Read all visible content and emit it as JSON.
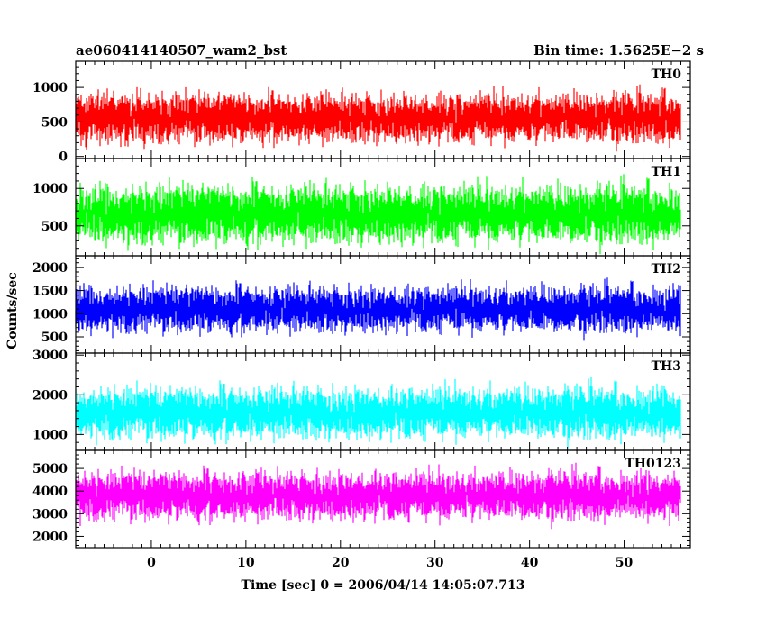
{
  "chart_data": {
    "type": "line",
    "title_left": "ae060414140507_wam2_bst",
    "title_right": "Bin time: 1.5625E−2 s",
    "xlabel": "Time [sec] 0 = 2006/04/14 14:05:07.713",
    "ylabel": "Counts/sec",
    "xlim": [
      -8,
      57
    ],
    "x_data_range": [
      -8,
      56
    ],
    "bin_time": 0.015625,
    "x_ticks": [
      0,
      10,
      20,
      30,
      40,
      50
    ],
    "x_tick_labels": [
      "0",
      "10",
      "20",
      "30",
      "40",
      "50"
    ],
    "grid": false,
    "panels": [
      {
        "name": "TH0",
        "color": "#ff0000",
        "ylim": [
          -30,
          1380
        ],
        "y_ticks": [
          0,
          500,
          1000
        ],
        "y_tick_labels": [
          "0",
          "500",
          "1000"
        ],
        "y_minor_step": 100,
        "mean": 560,
        "spread": 300,
        "low": 0,
        "high": 1380
      },
      {
        "name": "TH1",
        "color": "#00ff00",
        "ylim": [
          100,
          1400
        ],
        "y_ticks": [
          500,
          1000
        ],
        "y_tick_labels": [
          "500",
          "1000"
        ],
        "y_minor_step": 100,
        "mean": 660,
        "spread": 330,
        "low": 110,
        "high": 1400
      },
      {
        "name": "TH2",
        "color": "#0000ff",
        "ylim": [
          150,
          2250
        ],
        "y_ticks": [
          500,
          1000,
          1500,
          2000
        ],
        "y_tick_labels": [
          "500",
          "1000",
          "1500",
          "2000"
        ],
        "y_minor_step": 100,
        "mean": 1100,
        "spread": 420,
        "low": 200,
        "high": 2250
      },
      {
        "name": "TH3",
        "color": "#00ffff",
        "ylim": [
          600,
          3050
        ],
        "y_ticks": [
          1000,
          2000,
          3000
        ],
        "y_tick_labels": [
          "1000",
          "2000",
          "3000"
        ],
        "y_minor_step": 200,
        "mean": 1550,
        "spread": 550,
        "low": 650,
        "high": 3050
      },
      {
        "name": "TH0123",
        "color": "#ff00ff",
        "ylim": [
          1500,
          5800
        ],
        "y_ticks": [
          2000,
          3000,
          4000,
          5000
        ],
        "y_tick_labels": [
          "2000",
          "3000",
          "4000",
          "5000"
        ],
        "y_minor_step": 200,
        "mean": 3800,
        "spread": 900,
        "low": 1550,
        "high": 5800
      }
    ]
  }
}
